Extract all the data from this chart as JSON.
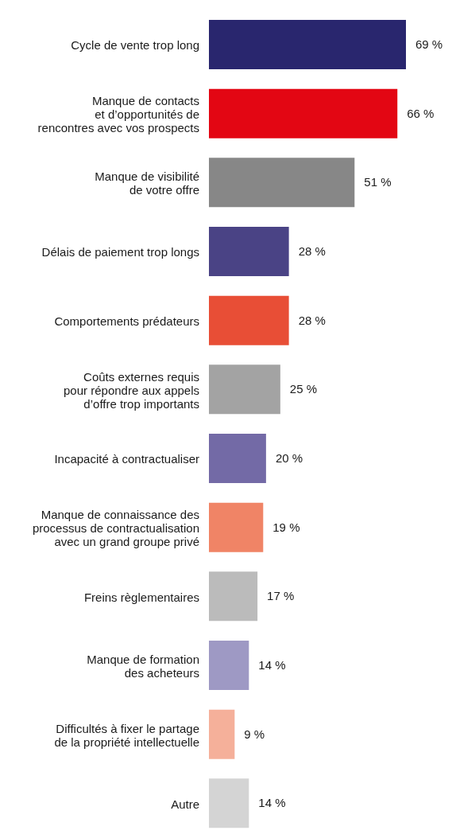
{
  "chart_data": {
    "type": "bar",
    "orientation": "horizontal",
    "categories": [
      "Cycle de vente trop long",
      "Manque de contacts\net d’opportunités de\nrencontres avec vos prospects",
      "Manque de visibilité\nde votre offre",
      "Délais de paiement trop longs",
      "Comportements prédateurs",
      "Coûts externes requis\npour répondre aux appels\nd’offre trop importants",
      "Incapacité à contractualiser",
      "Manque de connaissance des\nprocessus de contractualisation\navec un grand groupe privé",
      "Freins règlementaires",
      "Manque de formation\ndes acheteurs",
      "Difficultés à fixer le partage\nde la propriété intellectuelle",
      "Autre"
    ],
    "values": [
      69,
      66,
      51,
      28,
      28,
      25,
      20,
      19,
      17,
      14,
      9,
      14
    ],
    "value_labels": [
      "69 %",
      "66 %",
      "51 %",
      "28 %",
      "28 %",
      "25 %",
      "20 %",
      "19 %",
      "17 %",
      "14 %",
      "9 %",
      "14 %"
    ],
    "colors": [
      "#29266e",
      "#e30613",
      "#878787",
      "#4a4385",
      "#e84e36",
      "#a3a3a3",
      "#736aa6",
      "#f08466",
      "#bbbbbb",
      "#9e99c4",
      "#f5b09a",
      "#d4d4d4"
    ],
    "grid": false,
    "legend": false
  }
}
